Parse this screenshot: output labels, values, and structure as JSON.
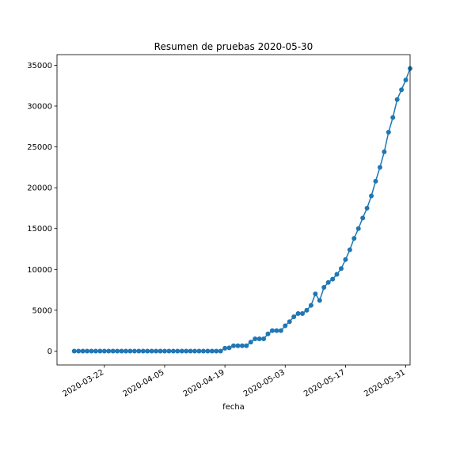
{
  "chart_data": {
    "type": "line",
    "title": "Resumen de pruebas 2020-05-30",
    "xlabel": "fecha",
    "ylabel": "",
    "x_start": "2020-03-15",
    "x_end": "2020-05-30",
    "xlim": [
      "2020-03-11",
      "2020-06-01"
    ],
    "ylim": [
      -1700,
      36300
    ],
    "grid": false,
    "series_color": "#1f77b4",
    "x_ticks": [
      "2020-03-22",
      "2020-04-05",
      "2020-04-19",
      "2020-05-03",
      "2020-05-17",
      "2020-05-31"
    ],
    "y_ticks": [
      0,
      5000,
      10000,
      15000,
      20000,
      25000,
      30000,
      35000
    ],
    "values": [
      0,
      0,
      0,
      0,
      0,
      0,
      0,
      0,
      0,
      0,
      0,
      0,
      0,
      0,
      0,
      0,
      0,
      0,
      0,
      0,
      0,
      0,
      0,
      0,
      0,
      0,
      0,
      0,
      0,
      0,
      0,
      0,
      0,
      0,
      0,
      350,
      400,
      650,
      650,
      650,
      650,
      1100,
      1500,
      1500,
      1500,
      2100,
      2500,
      2500,
      2500,
      3100,
      3600,
      4200,
      4600,
      4600,
      5000,
      5600,
      7000,
      6200,
      7800,
      8400,
      8800,
      9400,
      10100,
      11200,
      12400,
      13800,
      15000,
      16300,
      17500,
      19000,
      20800,
      22500,
      24400,
      26800,
      28600,
      30800,
      32000,
      33200,
      34600
    ]
  }
}
